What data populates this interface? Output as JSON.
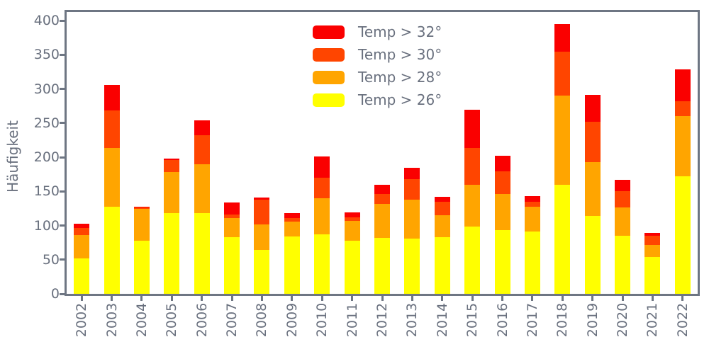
{
  "colors": {
    "red": "#fa0000",
    "orangered": "#ff4500",
    "orange": "#ffa500",
    "yellow": "#ffff00",
    "axis": "#6e7683",
    "text": "#69707e"
  },
  "chart_data": {
    "type": "bar",
    "stacked": true,
    "title": "",
    "xlabel": "",
    "ylabel": "Häufigkeit",
    "grid": false,
    "ylim": [
      0,
      414
    ],
    "yticks": [
      0,
      50,
      100,
      150,
      200,
      250,
      300,
      350,
      400
    ],
    "categories": [
      "2002",
      "2003",
      "2004",
      "2005",
      "2006",
      "2007",
      "2008",
      "2009",
      "2010",
      "2011",
      "2012",
      "2013",
      "2014",
      "2015",
      "2016",
      "2017",
      "2018",
      "2019",
      "2020",
      "2021",
      "2022"
    ],
    "series": [
      {
        "name": "Temp > 26°",
        "color_key": "yellow",
        "values": [
          52,
          127,
          78,
          118,
          118,
          83,
          64,
          84,
          87,
          78,
          82,
          81,
          83,
          98,
          93,
          91,
          160,
          114,
          85,
          54,
          172
        ]
      },
      {
        "name": "Temp > 28°",
        "color_key": "orange",
        "values": [
          34,
          86,
          46,
          60,
          72,
          28,
          38,
          22,
          53,
          29,
          50,
          57,
          32,
          62,
          53,
          36,
          130,
          79,
          41,
          18,
          88
        ]
      },
      {
        "name": "Temp > 30°",
        "color_key": "orangered",
        "values": [
          10,
          55,
          2,
          18,
          42,
          5,
          36,
          5,
          30,
          5,
          14,
          30,
          20,
          53,
          33,
          8,
          64,
          59,
          24,
          13,
          22
        ]
      },
      {
        "name": "Temp > 32°",
        "color_key": "red",
        "values": [
          7,
          38,
          1,
          2,
          22,
          18,
          3,
          7,
          31,
          7,
          14,
          16,
          7,
          56,
          23,
          8,
          41,
          39,
          17,
          4,
          46
        ]
      }
    ],
    "totals": [
      103,
      306,
      127,
      198,
      254,
      134,
      141,
      118,
      201,
      119,
      160,
      184,
      142,
      269,
      202,
      143,
      395,
      291,
      167,
      89,
      328
    ],
    "legend": {
      "position": "upper-center-right-inside",
      "frame": false,
      "entries": [
        {
          "label": "Temp > 32°",
          "color_key": "red"
        },
        {
          "label": "Temp > 30°",
          "color_key": "orangered"
        },
        {
          "label": "Temp > 28°",
          "color_key": "orange"
        },
        {
          "label": "Temp > 26°",
          "color_key": "yellow"
        }
      ]
    }
  }
}
